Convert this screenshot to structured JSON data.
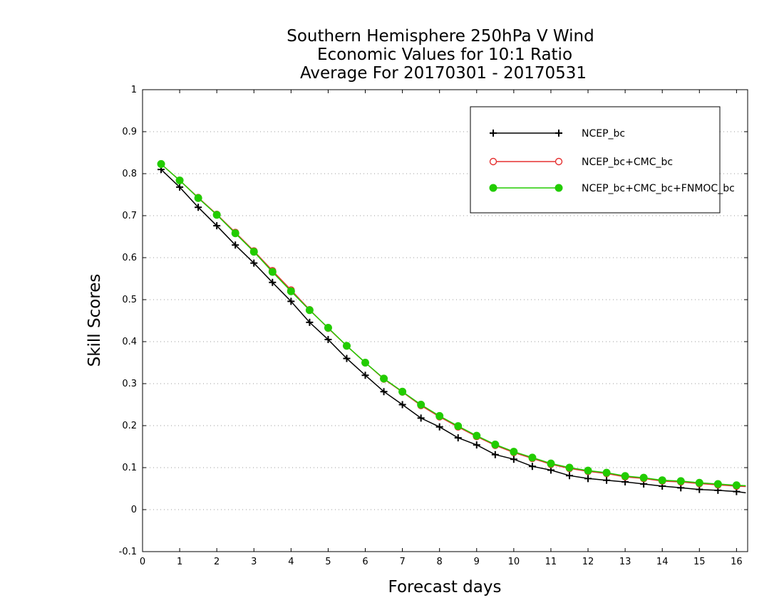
{
  "chart_data": {
    "type": "line",
    "title": [
      "Southern Hemisphere 250hPa V Wind",
      "Economic Values for 10:1 Ratio",
      "Average For 20170301 - 20170531"
    ],
    "xlabel": "Forecast days",
    "ylabel": "Skill Scores",
    "xlim": [
      0,
      16.3
    ],
    "ylim": [
      -0.1,
      1
    ],
    "xticks": [
      0,
      1,
      2,
      3,
      4,
      5,
      6,
      7,
      8,
      9,
      10,
      11,
      12,
      13,
      14,
      15,
      16
    ],
    "yticks": [
      -0.1,
      0,
      0.1,
      0.2,
      0.3,
      0.4,
      0.5,
      0.6,
      0.7,
      0.8,
      0.9,
      1
    ],
    "ytick_labels": [
      "-0.1",
      "0",
      "0.1",
      "0.2",
      "0.3",
      "0.4",
      "0.5",
      "0.6",
      "0.7",
      "0.8",
      "0.9",
      "1"
    ],
    "grid": "horizontal-dotted",
    "legend_position": "top-right",
    "x": [
      0.5,
      1,
      1.5,
      2,
      2.5,
      3,
      3.5,
      4,
      4.5,
      5,
      5.5,
      6,
      6.5,
      7,
      7.5,
      8,
      8.5,
      9,
      9.5,
      10,
      10.5,
      11,
      11.5,
      12,
      12.5,
      13,
      13.5,
      14,
      14.5,
      15,
      15.5,
      16,
      16.25
    ],
    "series": [
      {
        "name": "NCEP_bc",
        "color": "#000000",
        "marker": "plus",
        "values": [
          0.81,
          0.768,
          0.72,
          0.676,
          0.63,
          0.587,
          0.541,
          0.496,
          0.446,
          0.405,
          0.36,
          0.32,
          0.281,
          0.25,
          0.218,
          0.197,
          0.171,
          0.154,
          0.131,
          0.12,
          0.103,
          0.094,
          0.081,
          0.074,
          0.07,
          0.066,
          0.061,
          0.056,
          0.052,
          0.048,
          0.046,
          0.043,
          0.04
        ]
      },
      {
        "name": "NCEP_bc+CMC_bc",
        "color": "#e53030",
        "marker": "open-circle",
        "values": [
          0.823,
          0.784,
          0.743,
          0.703,
          0.66,
          0.616,
          0.569,
          0.523,
          0.476,
          0.432,
          0.39,
          0.35,
          0.311,
          0.28,
          0.248,
          0.221,
          0.197,
          0.174,
          0.153,
          0.136,
          0.122,
          0.108,
          0.098,
          0.091,
          0.086,
          0.078,
          0.074,
          0.068,
          0.066,
          0.062,
          0.059,
          0.056,
          0.055
        ]
      },
      {
        "name": "NCEP_bc+CMC_bc+FNMOC_bc",
        "color": "#22cc00",
        "marker": "filled-circle",
        "values": [
          0.823,
          0.784,
          0.742,
          0.702,
          0.658,
          0.614,
          0.566,
          0.52,
          0.475,
          0.433,
          0.39,
          0.35,
          0.312,
          0.281,
          0.25,
          0.223,
          0.199,
          0.176,
          0.155,
          0.138,
          0.124,
          0.11,
          0.1,
          0.093,
          0.088,
          0.08,
          0.076,
          0.07,
          0.068,
          0.064,
          0.061,
          0.058,
          0.057
        ]
      }
    ]
  }
}
